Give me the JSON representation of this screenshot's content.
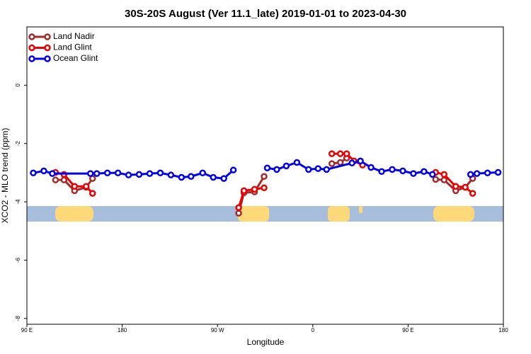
{
  "chart_data": {
    "type": "line",
    "title": "30S-20S August (Ver 11.1_late)   2019-01-01 to 2023-04-30",
    "x_label": "Longitude",
    "y_label": "XCO2 - MLO trend (ppm)",
    "xlim": [
      90,
      540
    ],
    "ylim": [
      -8.2,
      2
    ],
    "xticks": [
      {
        "value": 90,
        "label": "90 E"
      },
      180,
      {
        "value": 270,
        "label": "90 W"
      },
      {
        "value": 360,
        "label": "0"
      },
      {
        "value": 450,
        "label": "90 E"
      },
      {
        "value": 540,
        "label": "180"
      }
    ],
    "yticks": [
      0,
      -2,
      -4,
      -6,
      -8
    ],
    "legend": "top-left",
    "series": [
      {
        "name": "Land Nadir",
        "color": "#a52a2a",
        "x": [
          117,
          125,
          135,
          146,
          152,
          220,
          290,
          295,
          305,
          314,
          346,
          378,
          386,
          392,
          434,
          476,
          484,
          495,
          504,
          511
        ],
        "values": [
          -3.25,
          -3.25,
          -3.62,
          -3.5,
          -3.2,
          null,
          -4.39,
          -3.69,
          -3.66,
          -3.13,
          null,
          -2.69,
          -2.65,
          -2.5,
          null,
          -3.23,
          -3.25,
          -3.62,
          -3.5,
          -3.2
        ]
      },
      {
        "name": "Land Glint",
        "color": "#ee0000",
        "x": [
          117,
          125,
          135,
          146,
          152,
          220,
          290,
          295,
          305,
          314,
          346,
          378,
          386,
          392,
          399,
          407,
          440,
          476,
          484,
          495,
          504,
          511
        ],
        "values": [
          -2.99,
          -3.06,
          -3.47,
          -3.47,
          -3.71,
          null,
          -4.2,
          -3.62,
          -3.57,
          -3.52,
          null,
          -2.35,
          -2.35,
          -2.35,
          -2.6,
          -2.74,
          null,
          -2.99,
          -3.06,
          -3.47,
          -3.5,
          -3.71
        ]
      },
      {
        "name": "Ocean Glint",
        "color": "#0000ee",
        "x": [
          96,
          106,
          114,
          150,
          156,
          166,
          176,
          186,
          196,
          206,
          216,
          226,
          236,
          245,
          256,
          266,
          276,
          285,
          300,
          317,
          326,
          335,
          345,
          356,
          365,
          373,
          397,
          405,
          415,
          425,
          435,
          445,
          455,
          465,
          473,
          490,
          509,
          515,
          525,
          535
        ],
        "values": [
          -3.01,
          -2.94,
          -3.03,
          -3.03,
          -3.03,
          -3.01,
          -3.01,
          -3.08,
          -3.06,
          -3.03,
          -3.01,
          -3.08,
          -3.16,
          -3.13,
          -3.01,
          -3.16,
          -3.2,
          -2.91,
          null,
          -2.84,
          -2.89,
          -2.77,
          -2.65,
          -2.89,
          -2.86,
          -2.89,
          -2.67,
          -2.6,
          -2.82,
          -2.96,
          -2.89,
          -2.94,
          -3.03,
          -2.96,
          -3.06,
          null,
          -3.06,
          -3.03,
          -3.01,
          -2.99
        ]
      }
    ]
  }
}
